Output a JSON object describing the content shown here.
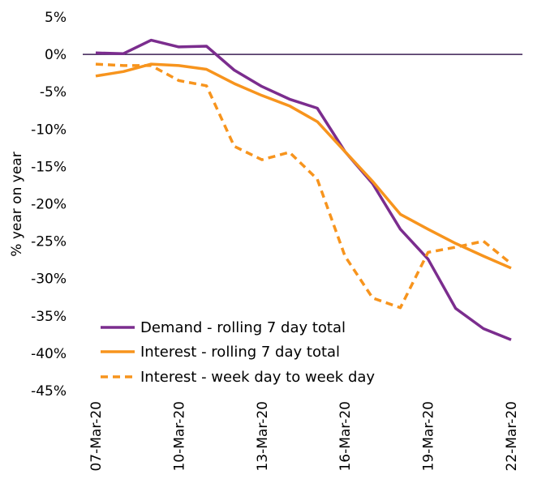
{
  "chart_data": {
    "type": "line",
    "title": "",
    "xlabel": "",
    "ylabel": "% year on year",
    "ylim": [
      -45,
      5
    ],
    "ytick_step": 5,
    "y_tick_suffix": "%",
    "grid": false,
    "legend_position": "bottom-left",
    "x": [
      "07-Mar-20",
      "08-Mar-20",
      "09-Mar-20",
      "10-Mar-20",
      "11-Mar-20",
      "12-Mar-20",
      "13-Mar-20",
      "14-Mar-20",
      "15-Mar-20",
      "16-Mar-20",
      "17-Mar-20",
      "18-Mar-20",
      "19-Mar-20",
      "20-Mar-20",
      "21-Mar-20",
      "22-Mar-20"
    ],
    "x_tick_labels": [
      "07-Mar-20",
      "10-Mar-20",
      "13-Mar-20",
      "16-Mar-20",
      "19-Mar-20",
      "22-Mar-20"
    ],
    "series": [
      {
        "name": "Demand - rolling 7 day total",
        "color": "#7b2d8e",
        "dash": "solid",
        "values": [
          0.2,
          0.1,
          1.9,
          1.0,
          1.1,
          -2.1,
          -4.3,
          -6.0,
          -7.2,
          -13.0,
          -17.3,
          -23.4,
          -27.4,
          -34.0,
          -36.7,
          -38.2
        ]
      },
      {
        "name": "Interest - rolling 7 day total",
        "color": "#f7941d",
        "dash": "solid",
        "values": [
          -2.9,
          -2.3,
          -1.3,
          -1.5,
          -2.0,
          -3.9,
          -5.5,
          -6.9,
          -9.0,
          -13.0,
          -17.0,
          -21.4,
          -23.4,
          -25.3,
          -27.0,
          -28.6
        ]
      },
      {
        "name": "Interest - week day to week day",
        "color": "#f7941d",
        "dash": "dashed",
        "values": [
          -1.3,
          -1.5,
          -1.5,
          -3.5,
          -4.2,
          -12.3,
          -14.1,
          -13.1,
          -16.7,
          -27.0,
          -32.6,
          -33.9,
          -26.5,
          -25.8,
          -25.0,
          -28.0
        ]
      }
    ]
  }
}
